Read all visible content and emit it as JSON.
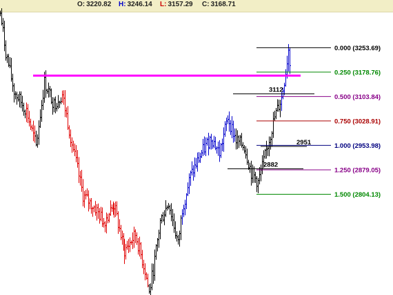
{
  "ohlc": {
    "open_label": "O:",
    "open": "3220.82",
    "high_label": "H:",
    "high": "3246.14",
    "low_label": "L:",
    "low": "3157.29",
    "close_label": "C:",
    "close": "3168.71"
  },
  "colors": {
    "up": "#0000cc",
    "down": "#e00000",
    "neutral": "#000000",
    "resistance": "#ff00ff",
    "label_black": "#000000",
    "label_red": "#cc0000"
  },
  "chart_data": {
    "type": "ohlc",
    "ylim": [
      2495,
      3400
    ],
    "fib_levels": [
      {
        "ratio": "0.000",
        "value": 3253.69,
        "label": "0.000 (3253.69)",
        "color": "#000000"
      },
      {
        "ratio": "0.250",
        "value": 3178.76,
        "label": "0.250 (3178.76)",
        "color": "#008800"
      },
      {
        "ratio": "0.500",
        "value": 3103.84,
        "label": "0.500 (3103.84)",
        "color": "#880088"
      },
      {
        "ratio": "0.750",
        "value": 3028.91,
        "label": "0.750 (3028.91)",
        "color": "#aa0000"
      },
      {
        "ratio": "1.000",
        "value": 2953.98,
        "label": "1.000 (2953.98)",
        "color": "#000080"
      },
      {
        "ratio": "1.250",
        "value": 2879.05,
        "label": "1.250 (2879.05)",
        "color": "#880088"
      },
      {
        "ratio": "1.500",
        "value": 2804.13,
        "label": "1.500 (2804.13)",
        "color": "#008800"
      }
    ],
    "resistance_value": 3168,
    "annotations": [
      {
        "text": "3112",
        "value": 3112
      },
      {
        "text": "2951",
        "value": 2951
      },
      {
        "text": "2882",
        "value": 2882
      }
    ],
    "price_path": [
      [
        0,
        3360,
        "neutral"
      ],
      [
        8,
        3240,
        "neutral"
      ],
      [
        20,
        3120,
        "neutral"
      ],
      [
        38,
        3060,
        "neutral"
      ],
      [
        52,
        2950,
        "down"
      ],
      [
        64,
        3148,
        "neutral"
      ],
      [
        78,
        3080,
        "neutral"
      ],
      [
        90,
        3110,
        "neutral"
      ],
      [
        104,
        2960,
        "down"
      ],
      [
        120,
        2800,
        "down"
      ],
      [
        138,
        2760,
        "down"
      ],
      [
        150,
        2720,
        "down"
      ],
      [
        165,
        2770,
        "down"
      ],
      [
        180,
        2630,
        "down"
      ],
      [
        196,
        2680,
        "down"
      ],
      [
        210,
        2570,
        "down"
      ],
      [
        216,
        2500,
        "down"
      ],
      [
        224,
        2600,
        "neutral"
      ],
      [
        232,
        2720,
        "neutral"
      ],
      [
        244,
        2780,
        "neutral"
      ],
      [
        258,
        2650,
        "neutral"
      ],
      [
        264,
        2760,
        "neutral"
      ],
      [
        276,
        2860,
        "up"
      ],
      [
        292,
        2930,
        "up"
      ],
      [
        306,
        2980,
        "up"
      ],
      [
        318,
        2930,
        "up"
      ],
      [
        330,
        3040,
        "up"
      ],
      [
        342,
        2970,
        "up"
      ],
      [
        354,
        2950,
        "neutral"
      ],
      [
        364,
        2870,
        "neutral"
      ],
      [
        374,
        2840,
        "neutral"
      ],
      [
        384,
        2920,
        "neutral"
      ],
      [
        398,
        3040,
        "neutral"
      ],
      [
        408,
        3100,
        "neutral"
      ],
      [
        414,
        3180,
        "up"
      ],
      [
        418,
        3250,
        "up"
      ],
      [
        422,
        3170,
        "up"
      ]
    ]
  }
}
